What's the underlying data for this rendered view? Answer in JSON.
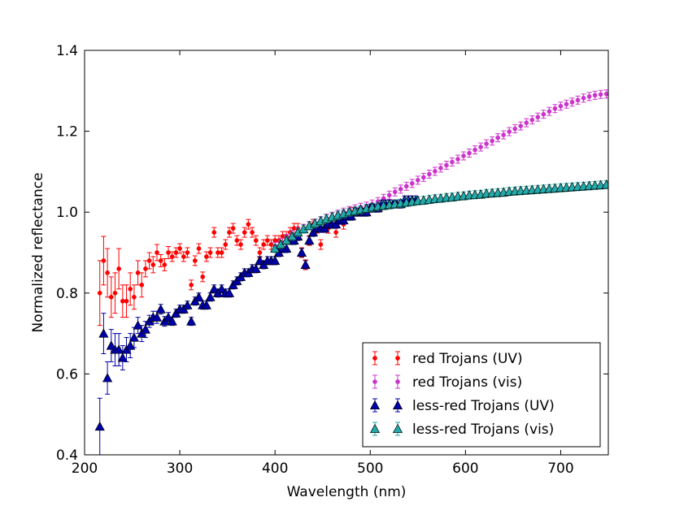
{
  "chart_data": {
    "type": "scatter",
    "title": "",
    "xlabel": "Wavelength (nm)",
    "ylabel": "Normalized reflectance",
    "xlim": [
      200,
      750
    ],
    "ylim": [
      0.4,
      1.4
    ],
    "xticks": [
      200,
      300,
      400,
      500,
      600,
      700
    ],
    "yticks": [
      0.4,
      0.6,
      0.8,
      1.0,
      1.2,
      1.4
    ],
    "xtick_labels": [
      "200",
      "300",
      "400",
      "500",
      "600",
      "700"
    ],
    "ytick_labels": [
      "0.4",
      "0.6",
      "0.8",
      "1.0",
      "1.2",
      "1.4"
    ],
    "legend_position": "lower-right",
    "series": [
      {
        "name": "red Trojans (UV)",
        "color": "#ff0000",
        "marker": "circle",
        "x": [
          216,
          220,
          224,
          228,
          232,
          236,
          240,
          244,
          248,
          252,
          256,
          260,
          264,
          268,
          272,
          276,
          280,
          284,
          288,
          292,
          296,
          300,
          304,
          308,
          312,
          316,
          320,
          324,
          328,
          332,
          336,
          340,
          344,
          348,
          352,
          356,
          360,
          364,
          368,
          372,
          376,
          380,
          384,
          388,
          392,
          396,
          400,
          404,
          408,
          412,
          416,
          420,
          424,
          428,
          432,
          436,
          440,
          444,
          448,
          456,
          464,
          472,
          480
        ],
        "y": [
          0.8,
          0.88,
          0.85,
          0.79,
          0.8,
          0.86,
          0.78,
          0.78,
          0.81,
          0.79,
          0.85,
          0.82,
          0.86,
          0.88,
          0.87,
          0.9,
          0.88,
          0.87,
          0.9,
          0.89,
          0.9,
          0.91,
          0.89,
          0.9,
          0.82,
          0.88,
          0.91,
          0.84,
          0.89,
          0.9,
          0.95,
          0.9,
          0.9,
          0.92,
          0.95,
          0.96,
          0.93,
          0.92,
          0.95,
          0.97,
          0.95,
          0.93,
          0.9,
          0.92,
          0.93,
          0.92,
          0.93,
          0.93,
          0.94,
          0.94,
          0.95,
          0.96,
          0.96,
          0.9,
          0.87,
          0.93,
          0.97,
          0.96,
          0.92,
          0.96,
          0.95,
          0.97,
          1.0
        ],
        "err": [
          0.08,
          0.06,
          0.06,
          0.05,
          0.05,
          0.05,
          0.04,
          0.04,
          0.04,
          0.03,
          0.03,
          0.03,
          0.02,
          0.02,
          0.02,
          0.02,
          0.015,
          0.015,
          0.015,
          0.012,
          0.012,
          0.012,
          0.012,
          0.012,
          0.012,
          0.012,
          0.012,
          0.012,
          0.012,
          0.012,
          0.012,
          0.012,
          0.012,
          0.012,
          0.012,
          0.012,
          0.012,
          0.012,
          0.012,
          0.012,
          0.012,
          0.012,
          0.012,
          0.012,
          0.012,
          0.012,
          0.012,
          0.012,
          0.012,
          0.012,
          0.012,
          0.012,
          0.012,
          0.012,
          0.012,
          0.012,
          0.012,
          0.012,
          0.012,
          0.012,
          0.012,
          0.012,
          0.012
        ]
      },
      {
        "name": "red Trojans (vis)",
        "color": "#cc33cc",
        "marker": "circle",
        "x": [
          400,
          406,
          412,
          418,
          424,
          430,
          436,
          442,
          448,
          454,
          460,
          466,
          472,
          478,
          484,
          490,
          496,
          502,
          508,
          514,
          520,
          526,
          532,
          538,
          544,
          550,
          556,
          562,
          568,
          574,
          580,
          586,
          592,
          598,
          604,
          610,
          616,
          622,
          628,
          634,
          640,
          646,
          652,
          658,
          664,
          670,
          676,
          682,
          688,
          694,
          700,
          706,
          712,
          718,
          724,
          730,
          736,
          742,
          748
        ],
        "y": [
          0.915,
          0.925,
          0.935,
          0.945,
          0.952,
          0.96,
          0.967,
          0.973,
          0.979,
          0.985,
          0.99,
          0.995,
          1.0,
          1.004,
          1.008,
          1.012,
          1.015,
          1.02,
          1.026,
          1.034,
          1.042,
          1.05,
          1.057,
          1.064,
          1.071,
          1.079,
          1.086,
          1.094,
          1.101,
          1.109,
          1.116,
          1.124,
          1.131,
          1.139,
          1.146,
          1.154,
          1.161,
          1.169,
          1.176,
          1.184,
          1.191,
          1.199,
          1.206,
          1.213,
          1.221,
          1.228,
          1.235,
          1.242,
          1.249,
          1.256,
          1.262,
          1.267,
          1.272,
          1.277,
          1.282,
          1.286,
          1.289,
          1.291,
          1.292
        ],
        "err": [
          0.01,
          0.01,
          0.01,
          0.01,
          0.01,
          0.01,
          0.01,
          0.01,
          0.01,
          0.01,
          0.01,
          0.01,
          0.01,
          0.01,
          0.01,
          0.01,
          0.01,
          0.01,
          0.01,
          0.01,
          0.01,
          0.01,
          0.01,
          0.01,
          0.01,
          0.01,
          0.01,
          0.01,
          0.01,
          0.01,
          0.01,
          0.01,
          0.01,
          0.01,
          0.01,
          0.01,
          0.01,
          0.01,
          0.01,
          0.01,
          0.01,
          0.01,
          0.01,
          0.01,
          0.01,
          0.01,
          0.01,
          0.01,
          0.01,
          0.01,
          0.01,
          0.01,
          0.01,
          0.01,
          0.01,
          0.01,
          0.01,
          0.01,
          0.01
        ]
      },
      {
        "name": "less-red Trojans (UV)",
        "color": "#0000aa",
        "marker": "triangle",
        "x": [
          216,
          220,
          224,
          228,
          232,
          236,
          240,
          244,
          248,
          252,
          256,
          260,
          264,
          268,
          272,
          276,
          280,
          284,
          288,
          292,
          296,
          300,
          304,
          308,
          312,
          316,
          320,
          324,
          328,
          332,
          336,
          340,
          344,
          348,
          352,
          356,
          360,
          364,
          368,
          372,
          376,
          380,
          384,
          388,
          392,
          396,
          400,
          404,
          408,
          412,
          416,
          420,
          424,
          428,
          432,
          436,
          440,
          444,
          448,
          452,
          456,
          460,
          464,
          468,
          472,
          476,
          480,
          484,
          488,
          492,
          496,
          500,
          504,
          508,
          512,
          516,
          520,
          524,
          528,
          532,
          536,
          540,
          544,
          548
        ],
        "y": [
          0.47,
          0.7,
          0.59,
          0.67,
          0.66,
          0.66,
          0.64,
          0.66,
          0.67,
          0.69,
          0.72,
          0.7,
          0.71,
          0.73,
          0.74,
          0.74,
          0.76,
          0.73,
          0.74,
          0.73,
          0.75,
          0.76,
          0.76,
          0.77,
          0.73,
          0.78,
          0.79,
          0.77,
          0.77,
          0.79,
          0.81,
          0.8,
          0.81,
          0.8,
          0.8,
          0.82,
          0.83,
          0.84,
          0.85,
          0.85,
          0.86,
          0.86,
          0.88,
          0.87,
          0.88,
          0.88,
          0.88,
          0.9,
          0.91,
          0.91,
          0.93,
          0.93,
          0.94,
          0.9,
          0.87,
          0.93,
          0.95,
          0.96,
          0.96,
          0.96,
          0.97,
          0.97,
          0.97,
          0.98,
          0.98,
          0.99,
          0.99,
          1.0,
          1.0,
          1.0,
          1.0,
          1.01,
          1.01,
          1.01,
          1.02,
          1.02,
          1.02,
          1.02,
          1.02,
          1.02,
          1.03,
          1.03,
          1.03,
          1.03
        ],
        "err": [
          0.07,
          0.05,
          0.04,
          0.04,
          0.04,
          0.04,
          0.03,
          0.03,
          0.03,
          0.025,
          0.02,
          0.02,
          0.02,
          0.015,
          0.015,
          0.015,
          0.012,
          0.012,
          0.012,
          0.01,
          0.01,
          0.01,
          0.01,
          0.01,
          0.01,
          0.01,
          0.01,
          0.01,
          0.01,
          0.01,
          0.01,
          0.01,
          0.01,
          0.01,
          0.01,
          0.01,
          0.01,
          0.01,
          0.01,
          0.01,
          0.01,
          0.01,
          0.01,
          0.01,
          0.01,
          0.01,
          0.01,
          0.01,
          0.01,
          0.01,
          0.01,
          0.01,
          0.01,
          0.01,
          0.01,
          0.01,
          0.01,
          0.01,
          0.01,
          0.01,
          0.01,
          0.01,
          0.01,
          0.01,
          0.01,
          0.01,
          0.01,
          0.01,
          0.01,
          0.01,
          0.01,
          0.01,
          0.01,
          0.01,
          0.01,
          0.01,
          0.01,
          0.01,
          0.01,
          0.01,
          0.01,
          0.01,
          0.01,
          0.01
        ]
      },
      {
        "name": "less-red Trojans (vis)",
        "color": "#22aaaa",
        "marker": "triangle",
        "x": [
          400,
          406,
          412,
          418,
          424,
          430,
          436,
          442,
          448,
          454,
          460,
          466,
          472,
          478,
          484,
          490,
          496,
          502,
          508,
          514,
          520,
          526,
          532,
          538,
          544,
          550,
          556,
          562,
          568,
          574,
          580,
          586,
          592,
          598,
          604,
          610,
          616,
          622,
          628,
          634,
          640,
          646,
          652,
          658,
          664,
          670,
          676,
          682,
          688,
          694,
          700,
          706,
          712,
          718,
          724,
          730,
          736,
          742,
          748
        ],
        "y": [
          0.91,
          0.92,
          0.93,
          0.94,
          0.95,
          0.958,
          0.966,
          0.972,
          0.978,
          0.983,
          0.988,
          0.992,
          0.996,
          1.0,
          1.003,
          1.006,
          1.009,
          1.012,
          1.014,
          1.016,
          1.018,
          1.02,
          1.022,
          1.024,
          1.026,
          1.028,
          1.029,
          1.031,
          1.033,
          1.034,
          1.036,
          1.037,
          1.039,
          1.04,
          1.042,
          1.043,
          1.044,
          1.046,
          1.047,
          1.048,
          1.049,
          1.051,
          1.052,
          1.053,
          1.054,
          1.055,
          1.056,
          1.057,
          1.058,
          1.059,
          1.06,
          1.061,
          1.062,
          1.063,
          1.064,
          1.065,
          1.066,
          1.067,
          1.068
        ],
        "err": [
          0.01,
          0.01,
          0.01,
          0.01,
          0.01,
          0.01,
          0.01,
          0.01,
          0.01,
          0.01,
          0.01,
          0.01,
          0.01,
          0.01,
          0.01,
          0.01,
          0.01,
          0.01,
          0.01,
          0.01,
          0.01,
          0.01,
          0.01,
          0.01,
          0.01,
          0.01,
          0.01,
          0.01,
          0.01,
          0.01,
          0.01,
          0.01,
          0.01,
          0.01,
          0.01,
          0.01,
          0.01,
          0.01,
          0.01,
          0.01,
          0.01,
          0.01,
          0.01,
          0.01,
          0.01,
          0.01,
          0.01,
          0.01,
          0.01,
          0.01,
          0.01,
          0.01,
          0.01,
          0.01,
          0.01,
          0.01,
          0.01,
          0.01,
          0.01
        ]
      }
    ]
  }
}
